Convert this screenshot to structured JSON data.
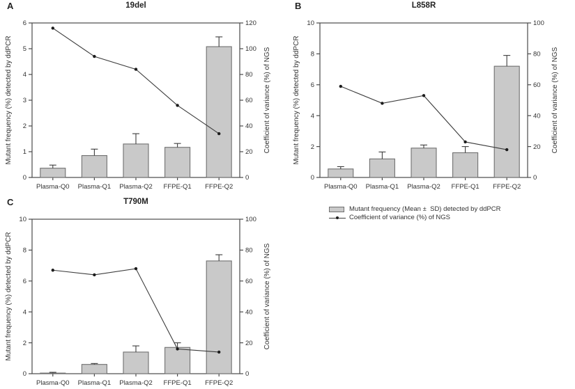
{
  "figure": {
    "background": "#ffffff",
    "legend": {
      "bar_label": "Mutant frequency (Mean ±  SD) detected by ddPCR",
      "line_label": "Coefficient of variance (%) of NGS"
    },
    "colors": {
      "bar_fill": "#c9c9c9",
      "bar_stroke": "#707070",
      "error_color": "#3c3c3c",
      "line_color": "#3c3c3c",
      "marker_color": "#1c1c1c",
      "axis_color": "#4a4a4a",
      "text_color": "#333333"
    }
  },
  "chart_data": [
    {
      "panel": "A",
      "type": "bar",
      "title": "19del",
      "categories": [
        "Plasma-Q0",
        "Plasma-Q1",
        "Plasma-Q2",
        "FFPE-Q1",
        "FFPE-Q2"
      ],
      "bar_series": {
        "name": "Mutant frequency (Mean ± SD) detected by ddPCR",
        "axis": "left",
        "values": [
          0.36,
          0.85,
          1.3,
          1.17,
          5.08
        ],
        "errors": [
          0.12,
          0.25,
          0.4,
          0.15,
          0.38
        ]
      },
      "line_series": {
        "name": "Coefficient of variance (%) of NGS",
        "axis": "right",
        "values": [
          116,
          94,
          84,
          56,
          34
        ]
      },
      "ylabel": "Mutant frequency (%) detected by ddPCR",
      "y2label": "Coefficient of variance (%) of NGS",
      "ylim": [
        0,
        6
      ],
      "ytick_step": 1,
      "y2lim": [
        0,
        120
      ],
      "y2tick_step": 20,
      "grid": false,
      "legend_position": "bottom-right-quadrant"
    },
    {
      "panel": "B",
      "type": "bar",
      "title": "L858R",
      "categories": [
        "Plasma-Q0",
        "Plasma-Q1",
        "Plasma-Q2",
        "FFPE-Q1",
        "FFPE-Q2"
      ],
      "bar_series": {
        "name": "Mutant frequency (Mean ± SD) detected by ddPCR",
        "axis": "left",
        "values": [
          0.55,
          1.2,
          1.9,
          1.6,
          7.2
        ],
        "errors": [
          0.15,
          0.45,
          0.2,
          0.4,
          0.7
        ]
      },
      "line_series": {
        "name": "Coefficient of variance (%) of NGS",
        "axis": "right",
        "values": [
          59,
          48,
          53,
          23,
          18
        ]
      },
      "ylabel": "Mutant frequency (%) detected by ddPCR",
      "y2label": "Coefficient of variance (%) of NGS",
      "ylim": [
        0,
        10
      ],
      "ytick_step": 2,
      "y2lim": [
        0,
        100
      ],
      "y2tick_step": 20,
      "grid": false,
      "legend_position": "bottom-right-quadrant"
    },
    {
      "panel": "C",
      "type": "bar",
      "title": "T790M",
      "categories": [
        "Plasma-Q0",
        "Plasma-Q1",
        "Plasma-Q2",
        "FFPE-Q1",
        "FFPE-Q2"
      ],
      "bar_series": {
        "name": "Mutant frequency (Mean ± SD) detected by ddPCR",
        "axis": "left",
        "values": [
          0.04,
          0.6,
          1.4,
          1.7,
          7.3
        ],
        "errors": [
          0.05,
          0.06,
          0.4,
          0.3,
          0.4
        ]
      },
      "line_series": {
        "name": "Coefficient of variance (%) of NGS",
        "axis": "right",
        "values": [
          67,
          64,
          68,
          16,
          14
        ]
      },
      "ylabel": "Mutant frequency (%) detected by ddPCR",
      "y2label": "Coefficient of variance (%) of NGS",
      "ylim": [
        0,
        10
      ],
      "ytick_step": 2,
      "y2lim": [
        0,
        100
      ],
      "y2tick_step": 20,
      "grid": false,
      "legend_position": "bottom-right-quadrant"
    }
  ]
}
